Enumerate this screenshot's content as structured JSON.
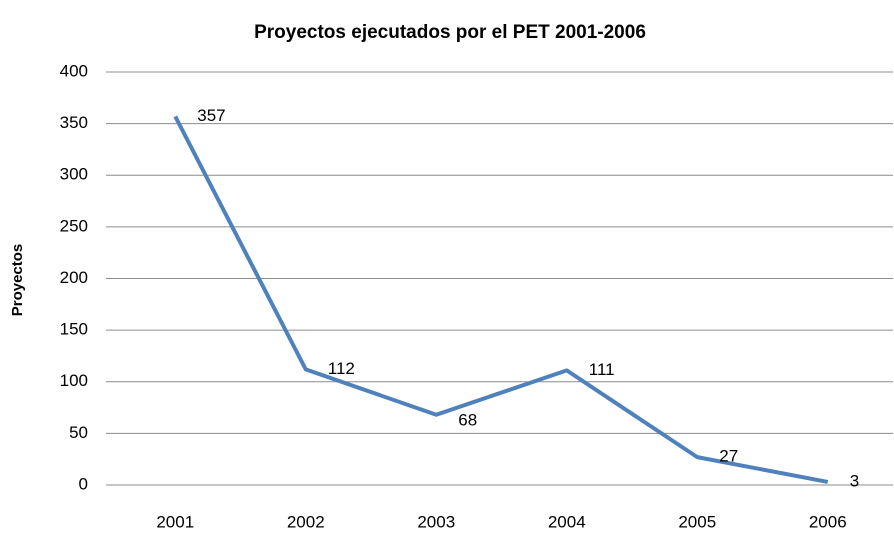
{
  "chart_data": {
    "type": "line",
    "title": "Proyectos ejecutados por el PET 2001-2006",
    "ylabel": "Proyectos",
    "categories": [
      "2001",
      "2002",
      "2003",
      "2004",
      "2005",
      "2006"
    ],
    "series": [
      {
        "name": "Proyectos",
        "color": "#4f81bd",
        "values": [
          357,
          112,
          68,
          111,
          27,
          3
        ]
      }
    ],
    "ylim": [
      0,
      400
    ],
    "yticks": [
      0,
      50,
      100,
      150,
      200,
      250,
      300,
      350,
      400
    ],
    "grid": true,
    "legend": false
  }
}
